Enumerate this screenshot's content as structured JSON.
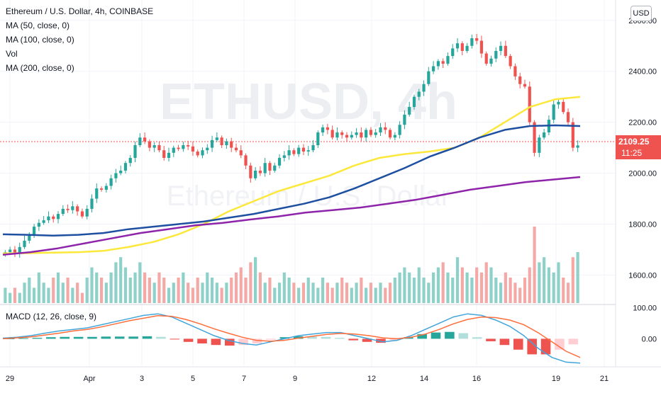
{
  "header": {
    "symbol_line": "Ethereum / U.S. Dollar, 4h, COINBASE",
    "indicators": [
      "MA (50, close, 0)",
      "MA (100, close, 0)",
      "Vol",
      "MA (200, close, 0)"
    ],
    "macd_label": "MACD (12, 26, close, 9)",
    "currency_badge": "USD"
  },
  "watermark": {
    "ticker": "ETHUSD, 4h",
    "name": "Ethereum / U.S. Dollar"
  },
  "last_price": {
    "value": "2109.25",
    "countdown": "11:25"
  },
  "colors": {
    "up": "#26a69a",
    "down": "#ef5350",
    "vol_up": "#8ed1c9",
    "vol_down": "#f4a9a7",
    "ma50": "#fbe83a",
    "ma100": "#1e4fa0",
    "ma200": "#8e24aa",
    "macd_line": "#42a5d9",
    "signal_line": "#ff6d3a"
  },
  "chart_data": [
    {
      "type": "candlestick",
      "title": "Ethereum / U.S. Dollar, 4h, COINBASE",
      "y_axis": {
        "ticks": [
          "1600.00",
          "1800.00",
          "2000.00",
          "2200.00",
          "2400.00",
          "2600.00"
        ],
        "ylim": [
          1490,
          2680
        ]
      },
      "x_axis": {
        "ticks": [
          "29",
          "Apr",
          "3",
          "5",
          "7",
          "9",
          "12",
          "14",
          "16",
          "19",
          "21"
        ]
      },
      "ohlc_close_approx": [
        1690,
        1700,
        1685,
        1710,
        1735,
        1760,
        1790,
        1805,
        1815,
        1830,
        1820,
        1840,
        1860,
        1855,
        1870,
        1850,
        1830,
        1860,
        1900,
        1940,
        1935,
        1950,
        1980,
        2000,
        2010,
        2040,
        2060,
        2110,
        2140,
        2125,
        2100,
        2110,
        2090,
        2060,
        2080,
        2100,
        2095,
        2110,
        2105,
        2085,
        2070,
        2090,
        2100,
        2130,
        2140,
        2110,
        2125,
        2100,
        2090,
        2070,
        2030,
        1980,
        2010,
        2000,
        2040,
        2010,
        2030,
        2060,
        2070,
        2090,
        2075,
        2100,
        2085,
        2090,
        2110,
        2160,
        2180,
        2170,
        2140,
        2160,
        2150,
        2140,
        2150,
        2160,
        2140,
        2170,
        2150,
        2160,
        2180,
        2170,
        2140,
        2150,
        2190,
        2230,
        2260,
        2300,
        2320,
        2350,
        2400,
        2420,
        2440,
        2430,
        2460,
        2490,
        2510,
        2480,
        2500,
        2530,
        2520,
        2470,
        2430,
        2450,
        2480,
        2500,
        2460,
        2420,
        2380,
        2350,
        2340,
        2200,
        2080,
        2140,
        2160,
        2210,
        2270,
        2280,
        2240,
        2200,
        2100,
        2109
      ]
    },
    {
      "type": "line",
      "series": [
        {
          "name": "MA (50, close, 0)",
          "values_approx": [
            1685,
            1686,
            1688,
            1690,
            1695,
            1710,
            1730,
            1760,
            1800,
            1850,
            1890,
            1930,
            1960,
            1990,
            2030,
            2060,
            2075,
            2085,
            2100,
            2140,
            2200,
            2260,
            2290,
            2300
          ]
        },
        {
          "name": "MA (100, close, 0)",
          "values_approx": [
            1760,
            1758,
            1755,
            1758,
            1765,
            1780,
            1790,
            1800,
            1810,
            1825,
            1840,
            1860,
            1880,
            1905,
            1940,
            1980,
            2020,
            2065,
            2100,
            2140,
            2170,
            2185,
            2188,
            2185
          ]
        },
        {
          "name": "MA (200, close, 0)",
          "values_approx": [
            1680,
            1690,
            1705,
            1725,
            1745,
            1765,
            1780,
            1795,
            1805,
            1818,
            1830,
            1845,
            1855,
            1865,
            1880,
            1895,
            1915,
            1935,
            1950,
            1965,
            1975,
            1985
          ]
        }
      ]
    },
    {
      "type": "bar",
      "name": "Vol",
      "values_approx": [
        3,
        2,
        3,
        2,
        4,
        5,
        3,
        6,
        4,
        3,
        5,
        6,
        4,
        5,
        3,
        4,
        2,
        5,
        7,
        6,
        5,
        4,
        6,
        8,
        9,
        7,
        5,
        6,
        8,
        6,
        5,
        4,
        6,
        5,
        3,
        4,
        5,
        6,
        4,
        3,
        5,
        4,
        6,
        5,
        4,
        3,
        4,
        5,
        6,
        7,
        5,
        8,
        9,
        6,
        4,
        5,
        3,
        4,
        6,
        5,
        4,
        3,
        4,
        5,
        4,
        3,
        5,
        4,
        3,
        4,
        5,
        4,
        3,
        4,
        5,
        3,
        4,
        3,
        4,
        3,
        4,
        5,
        6,
        7,
        6,
        5,
        7,
        5,
        4,
        6,
        7,
        8,
        6,
        5,
        9,
        7,
        6,
        5,
        7,
        6,
        8,
        7,
        5,
        4,
        6,
        5,
        4,
        3,
        5,
        7,
        15,
        8,
        9,
        7,
        6,
        8,
        5,
        4,
        9,
        10
      ]
    },
    {
      "type": "line",
      "name": "MACD (12, 26, close, 9)",
      "y_axis": {
        "ticks": [
          "100.00",
          "0.00"
        ],
        "ylim": [
          -90,
          110
        ]
      },
      "series": [
        {
          "name": "MACD",
          "values_approx": [
            2,
            5,
            10,
            18,
            25,
            30,
            35,
            45,
            55,
            65,
            75,
            80,
            70,
            50,
            30,
            10,
            -5,
            -15,
            -20,
            -10,
            0,
            10,
            15,
            20,
            20,
            10,
            0,
            -10,
            -5,
            10,
            30,
            50,
            70,
            80,
            75,
            60,
            40,
            10,
            -30,
            -60,
            -75,
            -78
          ]
        },
        {
          "name": "Signal",
          "values_approx": [
            0,
            3,
            6,
            12,
            18,
            25,
            30,
            38,
            48,
            58,
            66,
            74,
            72,
            62,
            48,
            32,
            18,
            5,
            -5,
            -8,
            -5,
            2,
            8,
            14,
            17,
            15,
            10,
            3,
            0,
            5,
            15,
            30,
            48,
            62,
            70,
            68,
            60,
            45,
            20,
            -10,
            -40,
            -60
          ]
        }
      ],
      "histogram_approx": [
        1,
        2,
        3,
        5,
        6,
        6,
        6,
        7,
        7,
        7,
        8,
        6,
        -2,
        -10,
        -15,
        -20,
        -22,
        -20,
        -15,
        -3,
        5,
        8,
        7,
        6,
        3,
        -5,
        -10,
        -13,
        -5,
        5,
        15,
        20,
        22,
        18,
        5,
        -8,
        -20,
        -35,
        -50,
        -50,
        -35,
        -18
      ]
    }
  ]
}
